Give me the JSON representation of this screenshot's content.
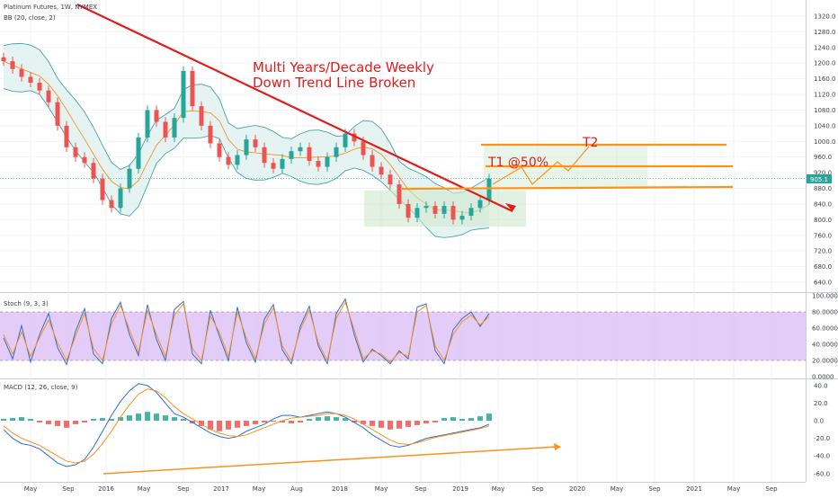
{
  "header": {
    "symbol_line": "Platinum Futures, 1W, NYMEX",
    "bb_label": "BB (20, close, 2)",
    "stoch_label": "Stoch (9, 3, 3)",
    "macd_label": "MACD (12, 26, close, 9)"
  },
  "annotations": {
    "headline_1": "Multi Years/Decade Weekly",
    "headline_2": "Down Trend Line Broken",
    "t1": "T1 @50%",
    "t2": "T2"
  },
  "price_tag": "905.1",
  "colors": {
    "trendline": "#e31b1b",
    "targets": "#f7931e",
    "up_candle": "#26a69a",
    "down_candle": "#ef5350",
    "bb_band": "#4aa3a3",
    "bb_mid": "#f7931e",
    "stoch_band": "#d9b7f7",
    "stoch_k": "#2f6fd1",
    "stoch_d": "#f7931e",
    "macd_line": "#2f6fd1",
    "signal_line": "#f7931e"
  },
  "chart_data": [
    {
      "type": "candlestick",
      "title": "Platinum Futures, 1W, NYMEX",
      "ylim": [
        600,
        1340
      ],
      "y_ticks": [
        "1320.0",
        "1280.0",
        "1240.0",
        "1200.0",
        "1160.0",
        "1120.0",
        "1080.0",
        "1040.0",
        "1000.0",
        "960.0",
        "920.0",
        "880.0",
        "840.0",
        "800.0",
        "760.0",
        "720.0",
        "680.0",
        "640.0"
      ],
      "x_ticks": [
        "May",
        "Sep",
        "2016",
        "May",
        "Sep",
        "2017",
        "May",
        "Aug",
        "2018",
        "May",
        "Sep",
        "2019",
        "May",
        "Sep",
        "2020",
        "May",
        "Sep",
        "2021",
        "May",
        "Sep"
      ],
      "series": [
        {
          "name": "close",
          "x": [
            0,
            10,
            20,
            30,
            40,
            50,
            60,
            70,
            80,
            90,
            100,
            110,
            120,
            130,
            140,
            150,
            160,
            170,
            180,
            190,
            200,
            210,
            220,
            230,
            240,
            250,
            260,
            270,
            280,
            290,
            300,
            310,
            320,
            330,
            340,
            350,
            360,
            370,
            380,
            390,
            400,
            410,
            420,
            430,
            440,
            450,
            460,
            470,
            480,
            490,
            500,
            510,
            520,
            530,
            540
          ],
          "values": [
            1205,
            1185,
            1165,
            1150,
            1130,
            1100,
            1040,
            985,
            960,
            945,
            905,
            850,
            830,
            880,
            930,
            1010,
            1080,
            1050,
            1010,
            1060,
            1180,
            1090,
            1040,
            995,
            960,
            940,
            965,
            1005,
            985,
            945,
            930,
            955,
            975,
            985,
            950,
            935,
            960,
            985,
            1020,
            1000,
            965,
            935,
            915,
            890,
            840,
            805,
            830,
            835,
            815,
            835,
            800,
            810,
            830,
            850,
            905
          ]
        }
      ]
    },
    {
      "type": "line",
      "title": "Stoch (9, 3, 3)",
      "ylim": [
        0,
        100
      ],
      "y_ticks": [
        "100.0000",
        "80.0000",
        "60.0000",
        "40.0000",
        "20.0000",
        "0.0000"
      ],
      "series": [
        {
          "name": "K",
          "values": [
            48,
            22,
            63,
            18,
            52,
            78,
            36,
            15,
            56,
            84,
            28,
            16,
            72,
            92,
            52,
            26,
            89,
            46,
            20,
            83,
            93,
            28,
            16,
            82,
            50,
            20,
            86,
            42,
            18,
            71,
            89,
            33,
            16,
            62,
            87,
            38,
            16,
            78,
            96,
            52,
            18,
            34,
            26,
            16,
            32,
            22,
            86,
            90,
            32,
            16,
            58,
            72,
            80,
            62,
            78
          ]
        },
        {
          "name": "D",
          "values": [
            52,
            28,
            55,
            25,
            48,
            70,
            42,
            20,
            50,
            78,
            35,
            20,
            65,
            88,
            58,
            30,
            82,
            52,
            25,
            76,
            90,
            35,
            20,
            75,
            55,
            25,
            80,
            48,
            22,
            65,
            85,
            38,
            20,
            58,
            82,
            42,
            20,
            72,
            92,
            58,
            22,
            32,
            28,
            18,
            30,
            25,
            80,
            88,
            38,
            20,
            52,
            68,
            76,
            64,
            74
          ]
        }
      ]
    },
    {
      "type": "bar",
      "title": "MACD (12, 26, close, 9)",
      "ylim": [
        -65,
        45
      ],
      "y_ticks": [
        "40.0",
        "20.0",
        "0.0",
        "-20.0",
        "-40.0",
        "-60.0"
      ],
      "series": [
        {
          "name": "histogram",
          "values": [
            2,
            3,
            4,
            2,
            -2,
            -4,
            -6,
            -8,
            -4,
            -2,
            2,
            3,
            2,
            4,
            6,
            8,
            10,
            8,
            6,
            4,
            2,
            -3,
            -6,
            -10,
            -12,
            -10,
            -8,
            -6,
            -4,
            -2,
            -1,
            -2,
            -3,
            -2,
            2,
            4,
            5,
            4,
            3,
            -2,
            -4,
            -6,
            -8,
            -10,
            -9,
            -7,
            -5,
            -3,
            -2,
            3,
            4,
            2,
            3,
            5,
            8
          ]
        },
        {
          "name": "MACD",
          "values": [
            -10,
            -20,
            -26,
            -28,
            -32,
            -40,
            -48,
            -52,
            -50,
            -44,
            -30,
            -12,
            6,
            22,
            34,
            42,
            40,
            32,
            20,
            8,
            4,
            -2,
            -8,
            -14,
            -18,
            -20,
            -18,
            -12,
            -8,
            -4,
            2,
            6,
            6,
            4,
            6,
            8,
            10,
            8,
            4,
            -2,
            -8,
            -16,
            -22,
            -28,
            -30,
            -28,
            -24,
            -20,
            -18,
            -16,
            -14,
            -12,
            -10,
            -8,
            -4
          ]
        },
        {
          "name": "signal",
          "values": [
            -6,
            -14,
            -20,
            -24,
            -28,
            -34,
            -40,
            -46,
            -48,
            -46,
            -38,
            -26,
            -12,
            4,
            18,
            30,
            36,
            34,
            26,
            16,
            8,
            2,
            -4,
            -10,
            -14,
            -17,
            -18,
            -16,
            -12,
            -8,
            -4,
            0,
            3,
            4,
            5,
            6,
            8,
            8,
            6,
            2,
            -4,
            -10,
            -16,
            -22,
            -26,
            -27,
            -25,
            -22,
            -19,
            -17,
            -15,
            -13,
            -11,
            -9,
            -6
          ]
        }
      ]
    }
  ]
}
